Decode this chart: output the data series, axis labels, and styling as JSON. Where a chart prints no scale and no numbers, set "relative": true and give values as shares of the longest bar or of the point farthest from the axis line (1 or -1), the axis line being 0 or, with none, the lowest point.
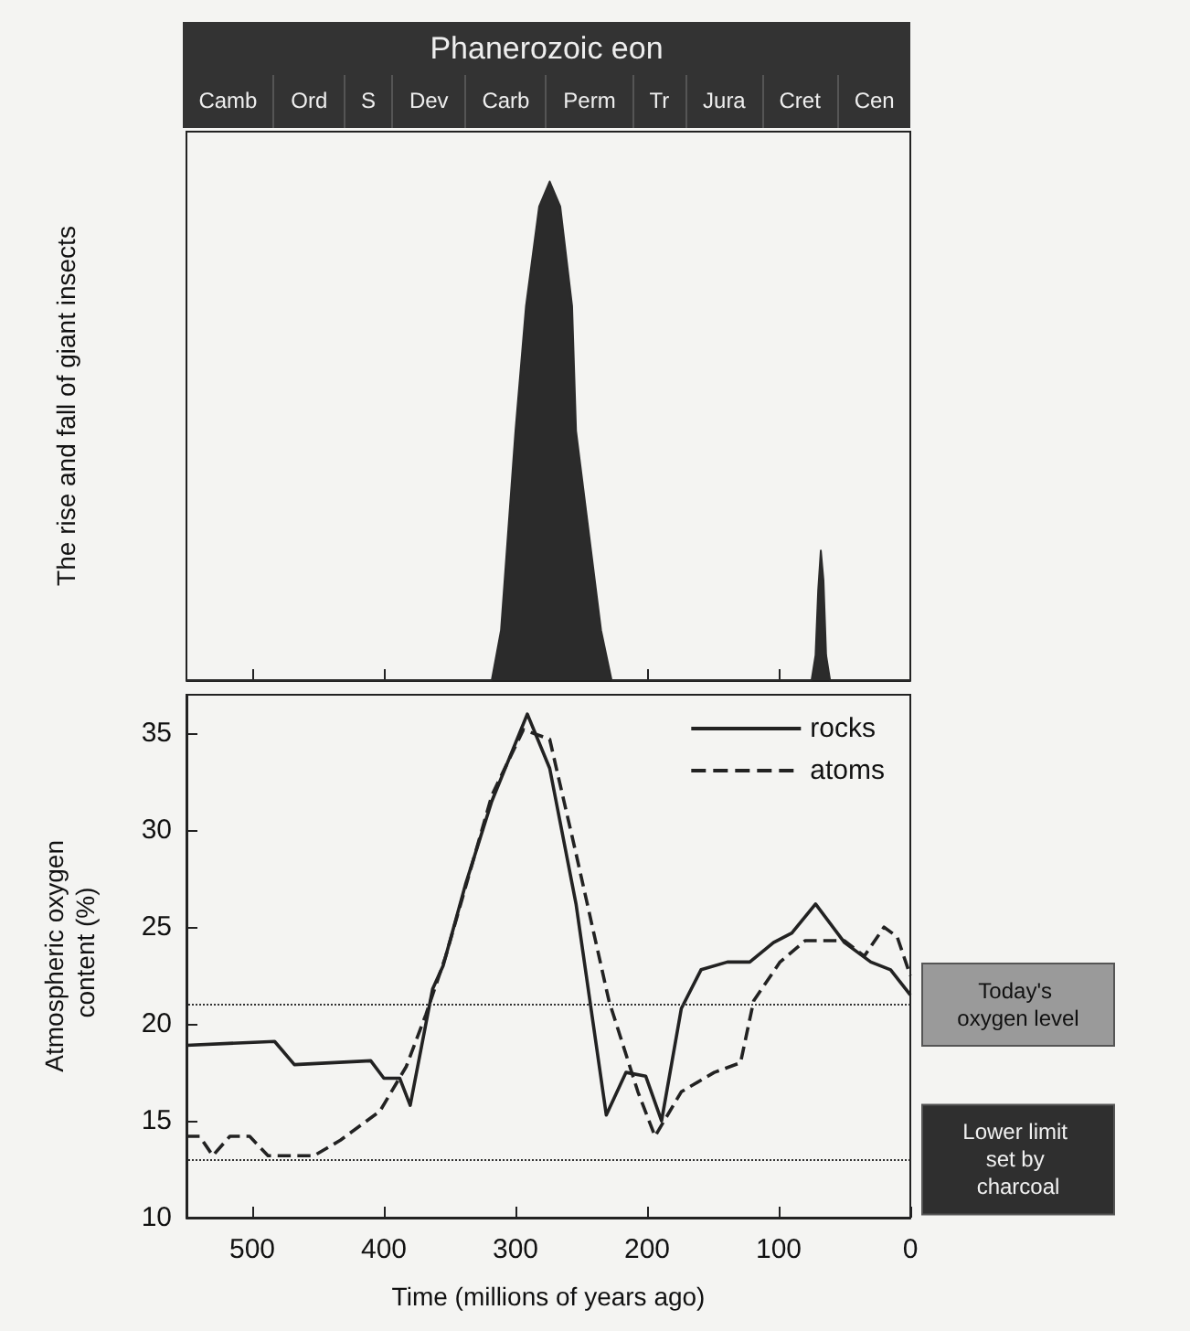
{
  "chart_data": [
    {
      "type": "other",
      "title": "Phanerozoic eon",
      "annotations": [
        "Camb",
        "Ord",
        "S",
        "Dev",
        "Carb",
        "Perm",
        "Tr",
        "Jura",
        "Cret",
        "Cen"
      ]
    },
    {
      "type": "area",
      "ylabel": "The rise and fall of giant insects",
      "relative": true,
      "color": "#2b2b2b",
      "tick_labels": false,
      "x": [
        550,
        318,
        311,
        300,
        292,
        282,
        274,
        266,
        257,
        254,
        235,
        227,
        75,
        72,
        70,
        68,
        66,
        64,
        61,
        0
      ],
      "values": [
        0,
        0,
        0.1,
        0.5,
        0.75,
        0.95,
        1,
        0.95,
        0.75,
        0.5,
        0.1,
        0,
        0,
        0.05,
        0.18,
        0.26,
        0.2,
        0.05,
        0,
        0
      ],
      "xlim": [
        550,
        0
      ],
      "xticks": [
        {
          "value": 500,
          "label": null
        },
        {
          "value": 400,
          "label": null
        },
        {
          "value": 300,
          "label": null
        },
        {
          "value": 200,
          "label": null
        },
        {
          "value": 100,
          "label": null
        }
      ]
    },
    {
      "type": "line",
      "xlabel": "Time (millions of years ago)",
      "ylabel": "Atmospheric oxygen content (%)",
      "legend": "top right",
      "marker": "none",
      "xlim": [
        550,
        0
      ],
      "ylim": [
        10,
        37
      ],
      "xticks": [
        500,
        400,
        300,
        200,
        100,
        0
      ],
      "yticks": [
        10,
        15,
        20,
        25,
        30,
        35
      ],
      "series": [
        {
          "name": "rocks",
          "color": "#222222",
          "line_style": "solid",
          "x": [
            550,
            483,
            468,
            410,
            400,
            388,
            380,
            363,
            355,
            338,
            318,
            291,
            274,
            254,
            231,
            216,
            201,
            189,
            174,
            159,
            139,
            122,
            104,
            90,
            72,
            50,
            30,
            15,
            0
          ],
          "values": [
            18.9,
            19.1,
            17.9,
            18.1,
            17.2,
            17.2,
            15.8,
            21.8,
            23,
            27.2,
            31.5,
            36,
            33.2,
            26.2,
            15.3,
            17.5,
            17.3,
            15,
            20.8,
            22.8,
            23.2,
            23.2,
            24.2,
            24.7,
            26.2,
            24.2,
            23.2,
            22.8,
            21.5
          ]
        },
        {
          "name": "atoms",
          "color": "#222222",
          "line_style": "dashed",
          "x": [
            550,
            540,
            530,
            517,
            502,
            488,
            453,
            433,
            403,
            383,
            368,
            353,
            318,
            294,
            274,
            254,
            229,
            207,
            194,
            174,
            149,
            129,
            119,
            99,
            80,
            50,
            35,
            20,
            10,
            0
          ],
          "values": [
            14.2,
            14.2,
            13.2,
            14.2,
            14.2,
            13.2,
            13.2,
            14,
            15.5,
            17.8,
            20.5,
            23.5,
            31.8,
            35.2,
            34.7,
            28.8,
            21.2,
            16.5,
            14.2,
            16.5,
            17.5,
            18,
            21.2,
            23.2,
            24.3,
            24.3,
            23.5,
            25,
            24.5,
            22.5
          ]
        }
      ],
      "ref_lines": [
        {
          "axis": "y",
          "value": 21,
          "label": "Today's oxygen level",
          "color": "#333333",
          "line_style": "dotted"
        },
        {
          "axis": "y",
          "value": 13,
          "label": "Lower limit set by charcoal",
          "color": "#333333",
          "line_style": "dotted"
        }
      ]
    }
  ]
}
